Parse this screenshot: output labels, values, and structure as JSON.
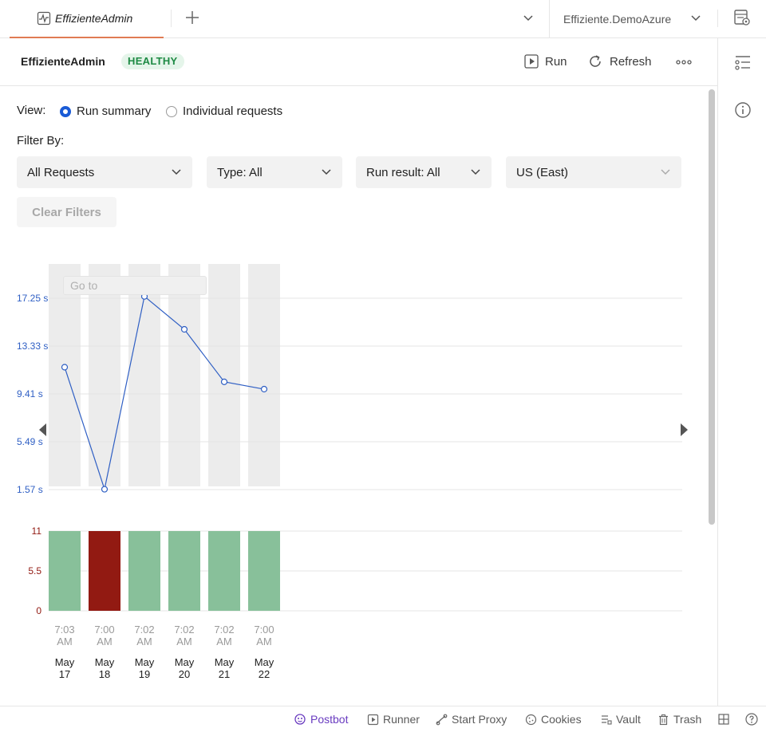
{
  "tab": {
    "label": "EffizienteAdmin"
  },
  "environment": {
    "name": "Effiziente.DemoAzure"
  },
  "header": {
    "monitor_name": "EffizienteAdmin",
    "status": "HEALTHY",
    "run_label": "Run",
    "refresh_label": "Refresh"
  },
  "view": {
    "label": "View:",
    "options": [
      "Run summary",
      "Individual requests"
    ],
    "selected": "Run summary"
  },
  "filters": {
    "label": "Filter By:",
    "requests": "All Requests",
    "type": "Type: All",
    "run_result": "Run result: All",
    "region": "US (East)",
    "clear_label": "Clear Filters"
  },
  "goto_placeholder": "Go to",
  "chart_data": [
    {
      "type": "line",
      "x": [
        "May 17 7:03 AM",
        "May 18 7:00 AM",
        "May 19 7:02 AM",
        "May 20 7:02 AM",
        "May 21 7:02 AM",
        "May 22 7:00 AM"
      ],
      "values_seconds": [
        11.6,
        1.6,
        17.4,
        14.7,
        10.4,
        9.8
      ],
      "y_ticks": [
        "17.25 s",
        "13.33 s",
        "9.41 s",
        "5.49 s",
        "1.57 s"
      ],
      "ylim": [
        1.57,
        17.25
      ],
      "color": "#2f5fc4"
    },
    {
      "type": "bar",
      "categories": [
        "May 17 7:03 AM",
        "May 18 7:00 AM",
        "May 19 7:02 AM",
        "May 20 7:02 AM",
        "May 21 7:02 AM",
        "May 22 7:00 AM"
      ],
      "values": [
        11,
        11,
        11,
        11,
        11,
        11
      ],
      "status": [
        "pass",
        "fail",
        "pass",
        "pass",
        "pass",
        "pass"
      ],
      "y_ticks": [
        "11",
        "5.5",
        "0"
      ],
      "ylim": [
        0,
        11
      ],
      "colors": {
        "pass": "#88c09a",
        "fail": "#921a12"
      }
    }
  ],
  "x_labels": [
    {
      "time": "7:03 AM",
      "month": "May",
      "day": "17"
    },
    {
      "time": "7:00 AM",
      "month": "May",
      "day": "18"
    },
    {
      "time": "7:02 AM",
      "month": "May",
      "day": "19"
    },
    {
      "time": "7:02 AM",
      "month": "May",
      "day": "20"
    },
    {
      "time": "7:02 AM",
      "month": "May",
      "day": "21"
    },
    {
      "time": "7:00 AM",
      "month": "May",
      "day": "22"
    }
  ],
  "statusbar": {
    "postbot": "Postbot",
    "runner": "Runner",
    "proxy": "Start Proxy",
    "cookies": "Cookies",
    "vault": "Vault",
    "trash": "Trash"
  }
}
